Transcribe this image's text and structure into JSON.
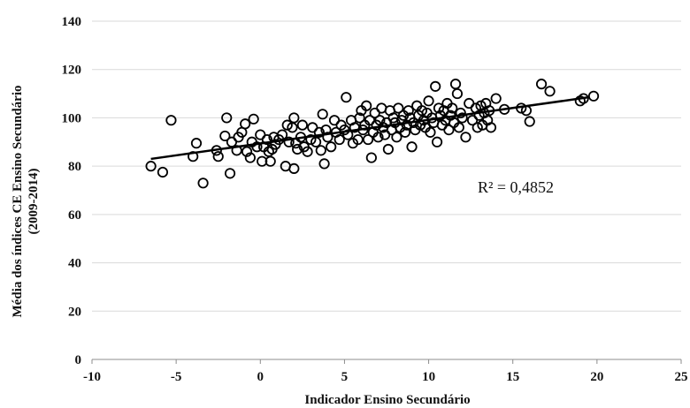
{
  "chart_data": {
    "type": "scatter",
    "title": "",
    "xlabel": "Indicador Ensino Secundário",
    "ylabel_line1": "Média dos índices  CE Ensino Secundário",
    "ylabel_line2": "(2009-2014)",
    "xlim": [
      -10,
      25
    ],
    "ylim": [
      0,
      140
    ],
    "x_ticks": [
      -10,
      -5,
      0,
      5,
      10,
      15,
      20,
      25
    ],
    "y_ticks": [
      0,
      20,
      40,
      60,
      80,
      100,
      120,
      140
    ],
    "grid": true,
    "legend": "none",
    "marker": "open circle",
    "trendline": {
      "type": "linear",
      "from": [
        -6.5,
        83
      ],
      "to": [
        19.5,
        108.5
      ]
    },
    "annotation": "R² = 0,4852",
    "points": [
      [
        -6.5,
        80
      ],
      [
        -5.8,
        77.5
      ],
      [
        -5.3,
        99
      ],
      [
        -4,
        84
      ],
      [
        -3.8,
        89.5
      ],
      [
        -3.4,
        73
      ],
      [
        -2.6,
        86.5
      ],
      [
        -2.5,
        84
      ],
      [
        -2.1,
        92.5
      ],
      [
        -2,
        100
      ],
      [
        -1.8,
        77
      ],
      [
        -1.7,
        90
      ],
      [
        -1.4,
        86.5
      ],
      [
        -1.3,
        92
      ],
      [
        -1.1,
        94
      ],
      [
        -0.9,
        97.5
      ],
      [
        -0.8,
        86
      ],
      [
        -0.6,
        83.5
      ],
      [
        -0.5,
        90
      ],
      [
        -0.4,
        99.5
      ],
      [
        -0.2,
        88
      ],
      [
        0,
        93
      ],
      [
        0.1,
        82
      ],
      [
        0.2,
        88
      ],
      [
        0.4,
        91
      ],
      [
        0.5,
        86
      ],
      [
        0.6,
        82
      ],
      [
        0.7,
        87
      ],
      [
        0.8,
        92
      ],
      [
        0.9,
        89
      ],
      [
        1.1,
        91
      ],
      [
        1.3,
        93
      ],
      [
        1.5,
        80
      ],
      [
        1.6,
        97
      ],
      [
        1.7,
        90
      ],
      [
        1.9,
        96
      ],
      [
        2,
        100
      ],
      [
        2.1,
        89.5
      ],
      [
        2,
        79
      ],
      [
        2.2,
        87
      ],
      [
        2.4,
        92
      ],
      [
        2.5,
        97
      ],
      [
        2.6,
        88
      ],
      [
        2.8,
        86
      ],
      [
        3,
        91
      ],
      [
        3.1,
        96
      ],
      [
        3.3,
        90
      ],
      [
        3.5,
        94
      ],
      [
        3.6,
        86.5
      ],
      [
        3.7,
        101.5
      ],
      [
        3.8,
        81
      ],
      [
        3.9,
        95
      ],
      [
        4,
        92
      ],
      [
        4.2,
        88
      ],
      [
        4.4,
        99
      ],
      [
        4.5,
        94
      ],
      [
        4.7,
        91
      ],
      [
        4.8,
        97
      ],
      [
        5,
        95
      ],
      [
        5.1,
        108.5
      ],
      [
        5.2,
        93
      ],
      [
        5.4,
        99
      ],
      [
        5.5,
        89.5
      ],
      [
        5.6,
        96
      ],
      [
        5.8,
        91
      ],
      [
        5.9,
        100
      ],
      [
        6,
        103
      ],
      [
        6.1,
        95
      ],
      [
        6.2,
        97
      ],
      [
        6.3,
        105
      ],
      [
        6.4,
        91
      ],
      [
        6.5,
        99
      ],
      [
        6.6,
        83.5
      ],
      [
        6.7,
        94
      ],
      [
        6.8,
        102
      ],
      [
        6.9,
        97
      ],
      [
        7,
        92
      ],
      [
        7.1,
        99
      ],
      [
        7.2,
        104
      ],
      [
        7.3,
        96
      ],
      [
        7.4,
        93
      ],
      [
        7.5,
        98
      ],
      [
        7.6,
        87
      ],
      [
        7.7,
        103
      ],
      [
        7.8,
        95
      ],
      [
        7.9,
        100
      ],
      [
        8,
        98
      ],
      [
        8.1,
        92
      ],
      [
        8.2,
        104
      ],
      [
        8.3,
        96
      ],
      [
        8.4,
        99
      ],
      [
        8.5,
        101
      ],
      [
        8.6,
        94
      ],
      [
        8.7,
        97
      ],
      [
        8.8,
        103
      ],
      [
        8.9,
        100
      ],
      [
        9,
        88
      ],
      [
        9.1,
        98
      ],
      [
        9.2,
        95
      ],
      [
        9.3,
        105
      ],
      [
        9.4,
        101
      ],
      [
        9.5,
        97
      ],
      [
        9.6,
        103
      ],
      [
        9.7,
        99
      ],
      [
        9.8,
        96
      ],
      [
        9.9,
        102
      ],
      [
        10,
        107
      ],
      [
        10.1,
        94
      ],
      [
        10.2,
        100
      ],
      [
        10.3,
        98
      ],
      [
        10.4,
        113
      ],
      [
        10.5,
        90
      ],
      [
        10.6,
        104
      ],
      [
        10.7,
        101
      ],
      [
        10.8,
        97
      ],
      [
        10.9,
        103
      ],
      [
        11,
        99
      ],
      [
        11.1,
        106
      ],
      [
        11.2,
        95
      ],
      [
        11.3,
        101
      ],
      [
        11.4,
        104
      ],
      [
        11.5,
        98
      ],
      [
        11.6,
        114
      ],
      [
        11.7,
        110
      ],
      [
        11.8,
        96
      ],
      [
        11.9,
        102
      ],
      [
        12,
        100
      ],
      [
        12.2,
        92
      ],
      [
        12.4,
        106
      ],
      [
        12.6,
        99
      ],
      [
        12.8,
        104
      ],
      [
        12.9,
        96
      ],
      [
        13,
        101
      ],
      [
        13.1,
        105
      ],
      [
        13.2,
        97
      ],
      [
        13.3,
        102
      ],
      [
        13.4,
        106
      ],
      [
        13.5,
        99
      ],
      [
        13.6,
        103
      ],
      [
        13.7,
        96
      ],
      [
        14,
        108
      ],
      [
        14.5,
        103.5
      ],
      [
        15.5,
        104
      ],
      [
        15.8,
        103
      ],
      [
        16,
        98.5
      ],
      [
        16.7,
        114
      ],
      [
        17.2,
        111
      ],
      [
        19,
        107
      ],
      [
        19.2,
        108
      ],
      [
        19.8,
        109
      ]
    ]
  }
}
